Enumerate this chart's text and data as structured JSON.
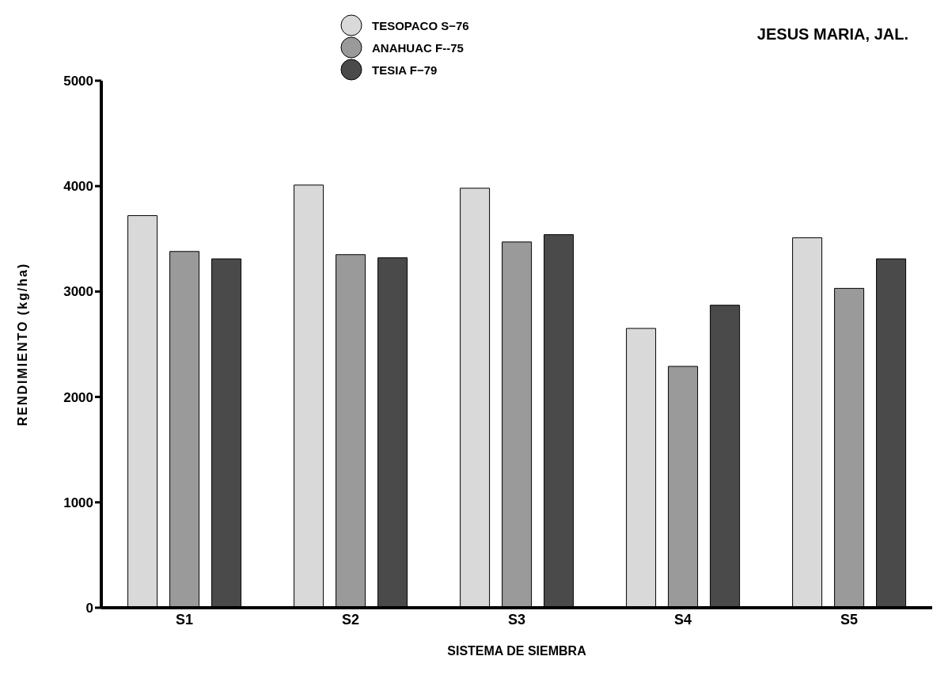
{
  "chart_data": {
    "type": "bar",
    "title": "JESUS MARIA, JAL.",
    "xlabel": "SISTEMA DE SIEMBRA",
    "ylabel": "RENDIMIENTO (kg/ha)",
    "categories": [
      "S1",
      "S2",
      "S3",
      "S4",
      "S5"
    ],
    "series": [
      {
        "name": "TESOPACO S−76",
        "color": "#d9d9d9",
        "values": [
          3720,
          4010,
          3980,
          2650,
          3510
        ]
      },
      {
        "name": "ANAHUAC F--75",
        "color": "#9a9a9a",
        "values": [
          3380,
          3350,
          3470,
          2290,
          3030
        ]
      },
      {
        "name": "TESIA F−79",
        "color": "#4a4a4a",
        "values": [
          3310,
          3320,
          3540,
          2870,
          3310
        ]
      }
    ],
    "ylim": [
      0,
      5000
    ],
    "yticks": [
      0,
      1000,
      2000,
      3000,
      4000,
      5000
    ],
    "grid": false,
    "legend": "top"
  }
}
